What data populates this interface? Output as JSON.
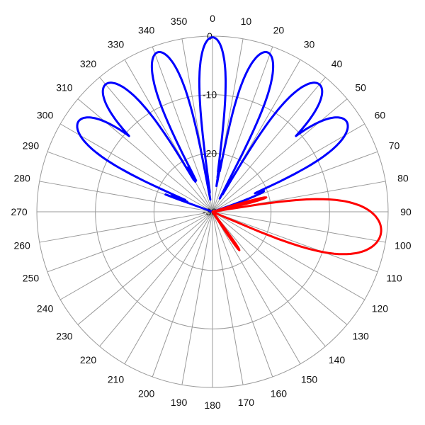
{
  "chart_data": {
    "type": "polar-line",
    "title": "",
    "angle_unit": "degrees",
    "angle_zero": "top",
    "angle_direction": "clockwise",
    "angle_ticks": [
      0,
      10,
      20,
      30,
      40,
      50,
      60,
      70,
      80,
      90,
      100,
      110,
      120,
      130,
      140,
      150,
      160,
      170,
      180,
      190,
      200,
      210,
      220,
      230,
      240,
      250,
      260,
      270,
      280,
      290,
      300,
      310,
      320,
      330,
      340,
      350
    ],
    "radial_unit": "dB",
    "radial_range": [
      -30,
      0
    ],
    "radial_rings": [
      0,
      -10,
      -20,
      -30
    ],
    "radial_ring_labels": [
      "0",
      "-10",
      "-20",
      "-30"
    ],
    "grid": true,
    "series": [
      {
        "color": "#0000ff",
        "lobes": [
          {
            "angle": -56,
            "peak_db": -2.4,
            "half_width_deg": 11
          },
          {
            "angle": -40,
            "peak_db": -1.6,
            "half_width_deg": 10
          },
          {
            "angle": -19,
            "peak_db": -1.2,
            "half_width_deg": 9
          },
          {
            "angle": 0,
            "peak_db": -0.2,
            "half_width_deg": 8
          },
          {
            "angle": 19,
            "peak_db": -1.2,
            "half_width_deg": 9
          },
          {
            "angle": 40,
            "peak_db": -1.6,
            "half_width_deg": 10
          },
          {
            "angle": 56,
            "peak_db": -2.4,
            "half_width_deg": 11
          },
          {
            "angle": 68,
            "peak_db": -20.5,
            "half_width_deg": 4
          }
        ],
        "sidelobe_range_db": [
          -28,
          -20
        ]
      },
      {
        "color": "#ff0000",
        "main_lobe_angle": 97,
        "main_peak_db": -1.0,
        "main_half_width_deg": 17,
        "side_lobes": [
          {
            "angle": 75,
            "peak_db": -20.5,
            "half_width_deg": 3
          },
          {
            "angle": 145,
            "peak_db": -22.0,
            "half_width_deg": 3
          }
        ],
        "floor_db": -30
      }
    ]
  }
}
